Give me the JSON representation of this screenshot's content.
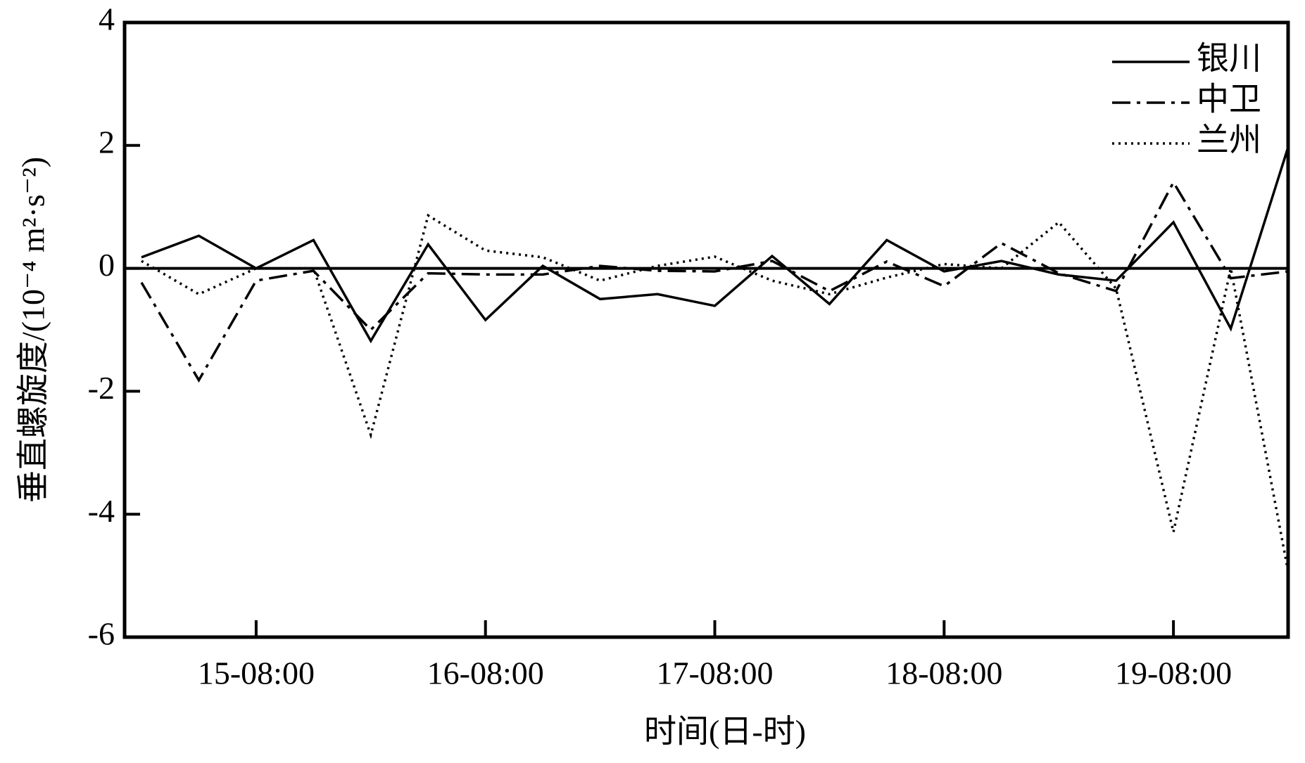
{
  "chart_data": {
    "type": "line",
    "x_label": "时间(日-时)",
    "y_label": "垂直螺旋度/(10⁻⁴ m²·s⁻²)",
    "categories": [
      null,
      null,
      "15-08:00",
      null,
      null,
      null,
      "16-08:00",
      null,
      null,
      null,
      "17-08:00",
      null,
      null,
      null,
      "18-08:00",
      null,
      null,
      null,
      "19-08:00",
      null,
      null
    ],
    "series": [
      {
        "name": "银川",
        "color": "#000000",
        "dash": "solid",
        "values": [
          0.18,
          0.53,
          0,
          0.46,
          -1.18,
          0.39,
          -0.84,
          0.04,
          -0.5,
          -0.42,
          -0.61,
          0.2,
          -0.58,
          0.46,
          -0.05,
          0.12,
          -0.1,
          -0.2,
          0.75,
          -0.98,
          1.97
        ]
      },
      {
        "name": "中卫",
        "color": "#000000",
        "dash": "dashdot",
        "values": [
          -0.23,
          -1.82,
          -0.2,
          -0.04,
          -1.0,
          -0.08,
          -0.1,
          -0.1,
          0.04,
          -0.04,
          -0.05,
          0.12,
          -0.37,
          0.11,
          -0.29,
          0.41,
          -0.08,
          -0.37,
          1.4,
          -0.16,
          -0.05
        ]
      },
      {
        "name": "兰州",
        "color": "#000000",
        "dash": "dotted",
        "values": [
          0.12,
          -0.42,
          0,
          0,
          -2.71,
          0.86,
          0.29,
          0.18,
          -0.2,
          0.04,
          0.19,
          -0.2,
          -0.42,
          -0.15,
          0.07,
          0,
          0.75,
          -0.33,
          -4.29,
          0,
          -4.93
        ]
      }
    ],
    "ylim": [
      -6,
      4
    ],
    "yticks": [
      -6,
      -4,
      -2,
      0,
      2,
      4
    ],
    "zero_line": true,
    "legend": "upper right"
  }
}
